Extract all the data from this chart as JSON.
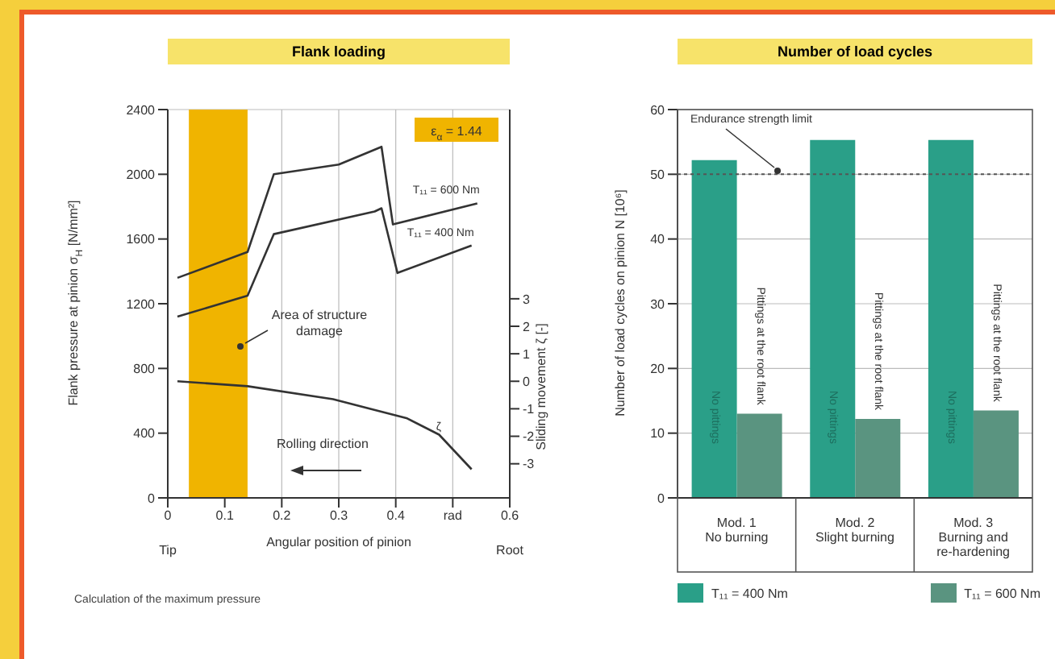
{
  "chart_data": [
    {
      "type": "line",
      "title": "Flank loading",
      "xlabel": "Angular position of pinion",
      "ylabel": "Flank pressure at pinion σ$_{H}$ [N/mm²]",
      "y2label": "Sliding movement ζ [-]",
      "xlim": [
        0,
        0.6
      ],
      "xticks": [
        0,
        0.1,
        0.2,
        0.3,
        0.4,
        {
          "value": 0.5,
          "label": "rad"
        },
        0.6
      ],
      "ylim": [
        0,
        2400
      ],
      "yticks": [
        0,
        400,
        800,
        1200,
        1600,
        2000,
        2400
      ],
      "y2lim": [
        -4.24,
        9.88
      ],
      "y2ticks": [
        3,
        2,
        1,
        0,
        -1,
        -2,
        -3
      ],
      "grid": true,
      "series": [
        {
          "name": "T₁₁ = 600 Nm",
          "color": "#333333",
          "x": [
            0.017,
            0.14,
            0.186,
            0.3,
            0.375,
            0.395,
            0.543
          ],
          "values": [
            1360,
            1520,
            2000,
            2060,
            2170,
            1690,
            1820
          ]
        },
        {
          "name": "T₁₁ = 400 Nm",
          "color": "#333333",
          "x": [
            0.017,
            0.14,
            0.186,
            0.363,
            0.375,
            0.403,
            0.533
          ],
          "values": [
            1120,
            1250,
            1630,
            1770,
            1790,
            1390,
            1560
          ]
        },
        {
          "name": "ζ",
          "color": "#333333",
          "axis": "y2",
          "x": [
            0.017,
            0.14,
            0.29,
            0.42,
            0.476,
            0.533
          ],
          "values": [
            0,
            -0.18,
            -0.65,
            -1.35,
            -1.94,
            -3.2
          ]
        }
      ],
      "bands": [
        {
          "axis": "x",
          "from": 0.037,
          "to": 0.14,
          "color": "#f0b400"
        }
      ],
      "annotations": [
        "ε$_{α}$ = 1.44",
        "Area of structure damage",
        "Rolling direction",
        "Tip",
        "Root",
        "Calculation of the maximum pressure"
      ]
    },
    {
      "type": "bar",
      "title": "Number of load cycles",
      "ylabel": "Number of load cycles on pinion N [10⁶]",
      "categories": [
        "Mod. 1\nNo burning",
        "Mod. 2\nSlight burning",
        "Mod. 3\nBurning and\nre-hardening"
      ],
      "ylim": [
        0,
        60
      ],
      "yticks": [
        0,
        10,
        20,
        30,
        40,
        50,
        60
      ],
      "grid": "y",
      "legend": "bottom",
      "series": [
        {
          "name": "T₁₁ = 400 Nm",
          "color": "#2a9f88",
          "values": [
            52.2,
            55.3,
            55.3
          ],
          "value_labels": [
            "No pittings",
            "No pittings",
            "No pittings"
          ]
        },
        {
          "name": "T₁₁ = 600 Nm",
          "color": "#5a9480",
          "values": [
            13,
            12.2,
            13.5
          ],
          "value_labels": [
            "Pittings at the root flank",
            "Pittings at the root flank",
            "Pittings at the root flank"
          ]
        }
      ],
      "ref_lines": [
        {
          "axis": "y",
          "value": 50,
          "label": "Endurance strength limit",
          "line_style": "dotted",
          "color": "#555555"
        }
      ]
    }
  ]
}
